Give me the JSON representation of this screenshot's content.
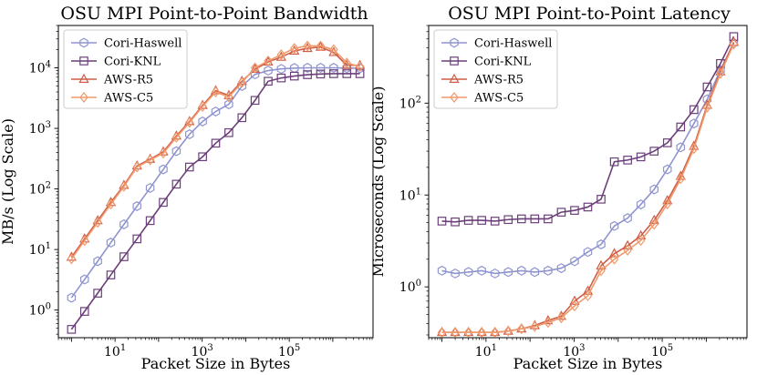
{
  "figure": {
    "x_tick_labels": [
      {
        "base": "10",
        "exp": "1",
        "value": 10
      },
      {
        "base": "10",
        "exp": "3",
        "value": 1000
      },
      {
        "base": "10",
        "exp": "5",
        "value": 100000
      }
    ]
  },
  "chart_data": [
    {
      "type": "line",
      "title": "OSU MPI Point-to-Point Bandwidth",
      "xlabel": "Packet Size in Bytes",
      "ylabel": "MB/s (Log Scale)",
      "xscale": "log",
      "yscale": "log",
      "xlim": [
        0.5,
        8388608
      ],
      "ylim": [
        0.35,
        50000
      ],
      "grid": false,
      "legend_position": "top-left",
      "y_tick_labels": [
        {
          "base": "10",
          "exp": "0",
          "value": 1
        },
        {
          "base": "10",
          "exp": "1",
          "value": 10
        },
        {
          "base": "10",
          "exp": "2",
          "value": 100
        },
        {
          "base": "10",
          "exp": "3",
          "value": 1000
        },
        {
          "base": "10",
          "exp": "4",
          "value": 10000
        }
      ],
      "x": [
        1,
        2,
        4,
        8,
        16,
        32,
        64,
        128,
        256,
        512,
        1024,
        2048,
        4096,
        8192,
        16384,
        32768,
        65536,
        131072,
        262144,
        524288,
        1048576,
        2097152,
        4194304
      ],
      "series": [
        {
          "name": "Cori-Haswell",
          "color": "#8f94cf",
          "marker": "hexagon",
          "values": [
            1.6,
            3.2,
            6.4,
            13,
            26,
            52,
            104,
            210,
            420,
            800,
            1300,
            1900,
            2500,
            5000,
            7800,
            9000,
            9600,
            9900,
            10000,
            10000,
            10000,
            9900,
            9800
          ]
        },
        {
          "name": "Cori-KNL",
          "color": "#6b3f7a",
          "marker": "square",
          "values": [
            0.48,
            0.95,
            1.9,
            3.8,
            7.6,
            15,
            30,
            60,
            120,
            230,
            340,
            570,
            850,
            1500,
            2900,
            6000,
            6800,
            7300,
            7700,
            7900,
            8000,
            8000,
            8000
          ]
        },
        {
          "name": "AWS-R5",
          "color": "#cf5d47",
          "marker": "triangle",
          "values": [
            7.5,
            15,
            30,
            60,
            115,
            240,
            310,
            410,
            750,
            1300,
            2400,
            4200,
            3500,
            6000,
            9500,
            12500,
            15000,
            19000,
            21000,
            22000,
            18000,
            11000,
            11000
          ]
        },
        {
          "name": "AWS-C5",
          "color": "#ef9a6c",
          "marker": "diamond",
          "values": [
            7.0,
            14,
            28,
            56,
            110,
            230,
            300,
            390,
            710,
            1250,
            2300,
            4000,
            3300,
            5700,
            10000,
            13000,
            16500,
            21000,
            23000,
            23000,
            20000,
            12000,
            10500
          ]
        }
      ]
    },
    {
      "type": "line",
      "title": "OSU MPI Point-to-Point Latency",
      "xlabel": "Packet Size in Bytes",
      "ylabel": "Microseconds (Log Scale)",
      "xscale": "log",
      "yscale": "log",
      "xlim": [
        0.5,
        8388608
      ],
      "ylim": [
        0.28,
        700
      ],
      "grid": false,
      "legend_position": "top-left",
      "y_tick_labels": [
        {
          "base": "10",
          "exp": "0",
          "value": 1
        },
        {
          "base": "10",
          "exp": "1",
          "value": 10
        },
        {
          "base": "10",
          "exp": "2",
          "value": 100
        }
      ],
      "x": [
        1,
        2,
        4,
        8,
        16,
        32,
        64,
        128,
        256,
        512,
        1024,
        2048,
        4096,
        8192,
        16384,
        32768,
        65536,
        131072,
        262144,
        524288,
        1048576,
        2097152,
        4194304
      ],
      "series": [
        {
          "name": "Cori-Haswell",
          "color": "#8f94cf",
          "marker": "hexagon",
          "values": [
            1.5,
            1.4,
            1.45,
            1.5,
            1.4,
            1.45,
            1.5,
            1.45,
            1.5,
            1.6,
            1.9,
            2.4,
            2.9,
            4.6,
            5.6,
            7.9,
            11.5,
            19,
            33,
            60,
            110,
            230,
            450
          ]
        },
        {
          "name": "Cori-KNL",
          "color": "#6b3f7a",
          "marker": "square",
          "values": [
            5.2,
            5.1,
            5.3,
            5.3,
            5.2,
            5.4,
            5.5,
            5.5,
            5.5,
            6.5,
            6.8,
            7.4,
            9.0,
            23,
            24,
            26,
            30,
            37,
            55,
            85,
            150,
            270,
            530
          ]
        },
        {
          "name": "AWS-R5",
          "color": "#cf5d47",
          "marker": "triangle",
          "values": [
            0.32,
            0.32,
            0.32,
            0.32,
            0.32,
            0.33,
            0.35,
            0.38,
            0.43,
            0.48,
            0.7,
            0.9,
            1.7,
            2.3,
            2.8,
            3.6,
            5.3,
            8.7,
            16,
            34,
            95,
            220,
            460
          ]
        },
        {
          "name": "AWS-C5",
          "color": "#ef9a6c",
          "marker": "diamond",
          "values": [
            0.32,
            0.32,
            0.32,
            0.32,
            0.32,
            0.33,
            0.35,
            0.37,
            0.41,
            0.46,
            0.62,
            0.8,
            1.5,
            2.0,
            2.5,
            3.2,
            4.8,
            8.0,
            15,
            32,
            90,
            210,
            440
          ]
        }
      ]
    }
  ]
}
